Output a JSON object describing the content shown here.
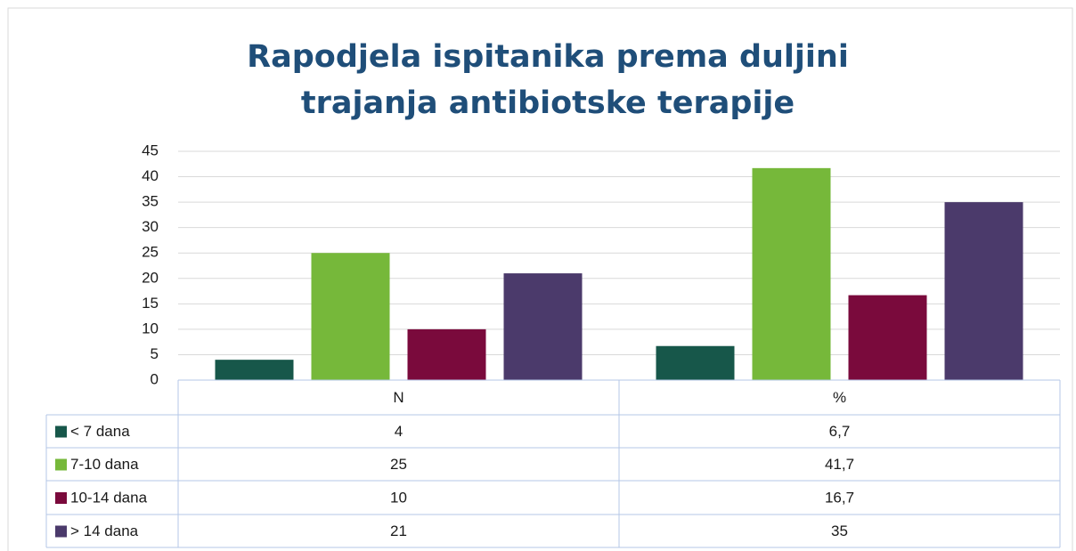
{
  "chart_data": {
    "type": "bar",
    "title": "Rapodjela ispitanika prema duljini trajanja antibiotske terapije",
    "categories": [
      "N",
      "%"
    ],
    "series": [
      {
        "name": "< 7 dana",
        "color": "#17574a",
        "values": [
          4,
          6.7
        ],
        "value_labels": [
          "4",
          "6,7"
        ]
      },
      {
        "name": "7-10 dana",
        "color": "#76b83a",
        "values": [
          25,
          41.7
        ],
        "value_labels": [
          "25",
          "41,7"
        ]
      },
      {
        "name": "10-14 dana",
        "color": "#7a0a3c",
        "values": [
          10,
          16.7
        ],
        "value_labels": [
          "10",
          "16,7"
        ]
      },
      {
        "name": "> 14 dana",
        "color": "#4b3a6b",
        "values": [
          21,
          35
        ],
        "value_labels": [
          "21",
          "35"
        ]
      }
    ],
    "ylim": [
      0,
      45
    ],
    "yticks": [
      0,
      5,
      10,
      15,
      20,
      25,
      30,
      35,
      40,
      45
    ],
    "grid": true
  }
}
